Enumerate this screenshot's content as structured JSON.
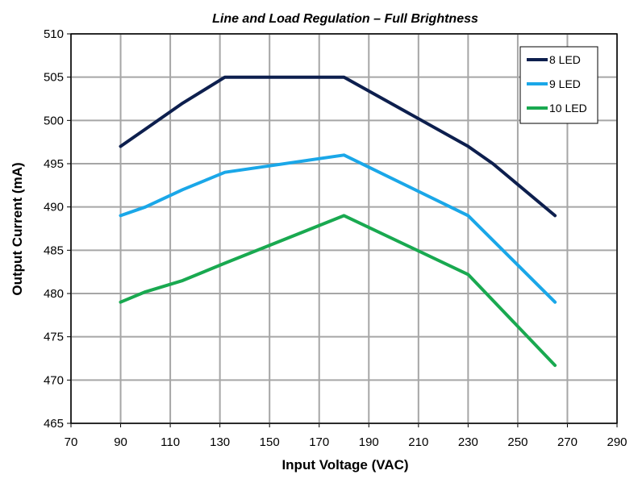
{
  "chart_data": {
    "type": "line",
    "title": "Line and Load Regulation – Full Brightness",
    "xlabel": "Input Voltage (VAC)",
    "ylabel": "Output Current (mA)",
    "xlim": [
      70,
      290
    ],
    "ylim": [
      465,
      510
    ],
    "xticks": [
      70,
      90,
      110,
      130,
      150,
      170,
      190,
      210,
      230,
      250,
      270,
      290
    ],
    "yticks": [
      465,
      470,
      475,
      480,
      485,
      490,
      495,
      500,
      505,
      510
    ],
    "grid": true,
    "legend_position": "top-right",
    "series": [
      {
        "name": "8 LED",
        "color": "#0d1f4e",
        "x": [
          90,
          100,
          115,
          132,
          180,
          230,
          240,
          265
        ],
        "y": [
          497,
          499,
          502,
          505,
          505,
          497,
          495,
          489
        ]
      },
      {
        "name": "9 LED",
        "color": "#1aa7e8",
        "x": [
          90,
          100,
          115,
          132,
          180,
          230,
          265
        ],
        "y": [
          489,
          490,
          492,
          494,
          496,
          489,
          479
        ]
      },
      {
        "name": "10 LED",
        "color": "#19a950",
        "x": [
          90,
          100,
          115,
          132,
          180,
          230,
          265
        ],
        "y": [
          479,
          480.2,
          481.5,
          483.5,
          489,
          482.2,
          471.7
        ]
      }
    ]
  }
}
